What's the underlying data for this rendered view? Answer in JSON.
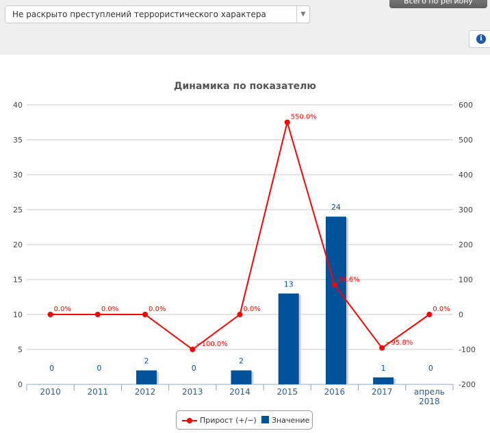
{
  "filter": {
    "selected": "Не раскрыто преступлений террористического характера"
  },
  "top_button": {
    "label": "Всего по региону"
  },
  "icons": {
    "info": "info-icon",
    "dropdown": "chevron-down-icon"
  },
  "colors": {
    "bar": "#00529b",
    "line": "#ff0000",
    "grid": "#c8c8c8",
    "axis_label": "#2a5d8f"
  },
  "chart_data": {
    "type": "bar",
    "title": "Динамика по показателю",
    "categories": [
      "2010",
      "2011",
      "2012",
      "2013",
      "2014",
      "2015",
      "2016",
      "2017",
      "апрель 2018"
    ],
    "y_left": {
      "min": 0,
      "max": 40,
      "ticks": [
        0,
        5,
        10,
        15,
        20,
        25,
        30,
        35,
        40
      ]
    },
    "y_right": {
      "min": -200,
      "max": 600,
      "ticks": [
        -200,
        -100,
        0,
        100,
        200,
        300,
        400,
        500,
        600
      ]
    },
    "series": [
      {
        "name": "Значение",
        "type": "bar",
        "axis": "left",
        "values": [
          0,
          0,
          2,
          0,
          2,
          13,
          24,
          1,
          0
        ],
        "labels": [
          "0",
          "0",
          "2",
          "0",
          "2",
          "13",
          "24",
          "1",
          "0"
        ]
      },
      {
        "name": "Прирост (+/−)",
        "type": "line",
        "axis": "right",
        "values": [
          0,
          0,
          0,
          -100,
          0,
          550,
          84.6,
          -95.8,
          0
        ],
        "labels": [
          "0.0%",
          "0.0%",
          "0.0%",
          "−100.0%",
          "0.0%",
          "550.0%",
          "84.6%",
          "−95.8%",
          "0.0%"
        ]
      }
    ],
    "grid": true,
    "legend": "bottom-center"
  }
}
